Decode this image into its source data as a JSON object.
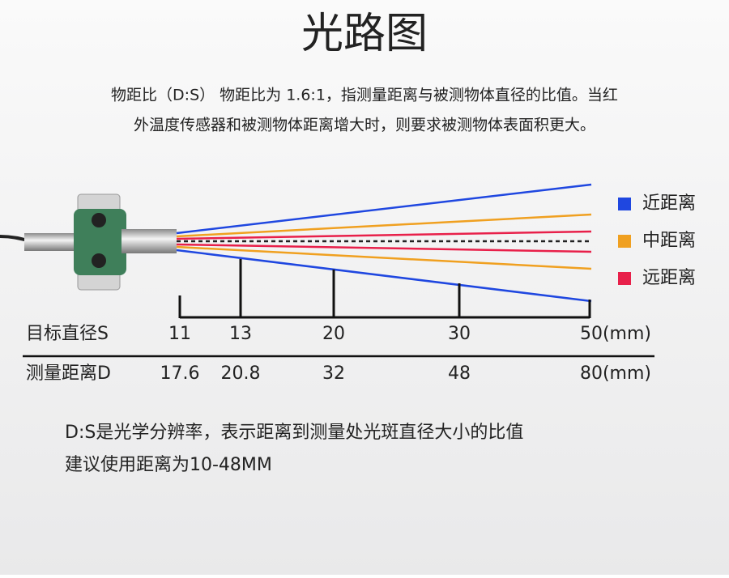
{
  "header": {
    "title": "光路图"
  },
  "description": [
    "物距比（D:S） 物距比为 1.6:1，指测量距离与被测物体直径的比值。当红",
    "外温度传感器和被测物体距离增大时，则要求被测物体表面积更大。"
  ],
  "legend": [
    {
      "label": "近距离",
      "color": "#1f47e0"
    },
    {
      "label": "中距离",
      "color": "#f0a020"
    },
    {
      "label": "远距离",
      "color": "#e8204a"
    }
  ],
  "table": {
    "rows": [
      [
        "目标直径S",
        "11",
        "13",
        "20",
        "30",
        "50(mm)"
      ],
      [
        "测量距离D",
        "17.6",
        "20.8",
        "32",
        "48",
        "80(mm)"
      ]
    ]
  },
  "note": [
    "D:S是光学分辨率，表示距离到测量处光斑直径大小的比值",
    "建议使用距离为10-48MM"
  ]
}
